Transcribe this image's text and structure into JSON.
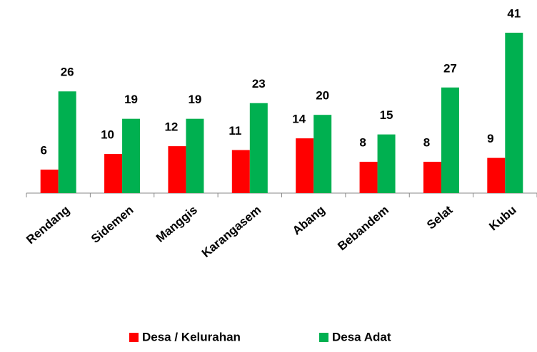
{
  "chart_data": {
    "type": "bar",
    "categories": [
      "Rendang",
      "Sidemen",
      "Manggis",
      "Karangasem",
      "Abang",
      "Bebandem",
      "Selat",
      "Kubu"
    ],
    "series": [
      {
        "name": "Desa / Kelurahan",
        "color": "#ff0000",
        "values": [
          6,
          10,
          12,
          11,
          14,
          8,
          8,
          9
        ]
      },
      {
        "name": "Desa Adat",
        "color": "#00b050",
        "values": [
          26,
          19,
          19,
          23,
          20,
          15,
          27,
          41
        ]
      }
    ],
    "ylim": [
      0,
      45
    ],
    "grid": false,
    "legend": "bottom"
  }
}
